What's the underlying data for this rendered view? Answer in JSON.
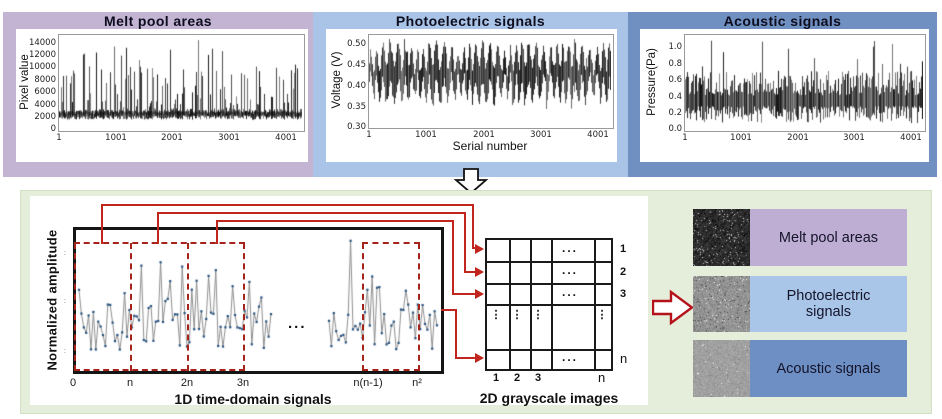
{
  "top_panels": [
    {
      "title": "Melt pool areas",
      "ylabel": "Pixel value",
      "yticks": [
        "14000",
        "12000",
        "10000",
        "8000",
        "6000",
        "4000",
        "2000",
        "0"
      ],
      "xticks": [
        "1",
        "1001",
        "2001",
        "3001",
        "4001"
      ]
    },
    {
      "title": "Photoelectric signals",
      "ylabel": "Voltage (V)",
      "yticks": [
        "0.50",
        "0.45",
        "0.40",
        "0.35",
        "0.30"
      ],
      "xticks": [
        "1",
        "1001",
        "2001",
        "3001",
        "4001"
      ],
      "xlabel": "Serial number"
    },
    {
      "title": "Acoustic signals",
      "ylabel": "Pressure(Pa)",
      "yticks": [
        "1.0",
        "0.8",
        "0.6",
        "0.4",
        "0.2",
        "0.0"
      ],
      "xticks": [
        "1",
        "1001",
        "2001",
        "3001",
        "4001"
      ]
    }
  ],
  "bottom": {
    "plot": {
      "ylabel": "Normalized amplitude",
      "xlabel": "1D time-domain signals",
      "xticks": [
        "0",
        "n",
        "2n",
        "3n",
        "n(n-1)",
        "n²"
      ],
      "ellipsis": "..."
    },
    "grid": {
      "caption": "2D grayscale images",
      "row_labels": [
        "1",
        "2",
        "3",
        "n"
      ],
      "col_labels": [
        "1",
        "2",
        "3",
        "n"
      ],
      "ellipsis_h": "...",
      "ellipsis_v": "⋮"
    },
    "outputs": [
      {
        "label": "Melt pool areas"
      },
      {
        "label": "Photoelectric signals"
      },
      {
        "label": "Acoustic signals"
      }
    ]
  },
  "colors": {
    "lavender": "#c3b4d4",
    "light_blue": "#a9c4e6",
    "steel_blue": "#7090c2",
    "steel_blue_band": "#6d8fc4",
    "green_background": "#e4eeda",
    "red_connector": "#c2251d",
    "dark_red_dashed": "#a6231c"
  },
  "chart_data": [
    {
      "type": "line",
      "title": "Melt pool areas",
      "ylabel": "Pixel value",
      "xticks": [
        1,
        1001,
        2001,
        3001,
        4001
      ],
      "yticks": [
        0,
        2000,
        4000,
        6000,
        8000,
        10000,
        12000,
        14000
      ],
      "xrange": [
        1,
        4200
      ],
      "ylim": [
        0,
        14500
      ],
      "series_description": "dense noisy spike train; baseline ~2000 pixel value; frequent spikes 4000-11000; maximum spike ~14300 near serial 2400; spikes ~12800 near serials 2600-2750"
    },
    {
      "type": "line",
      "title": "Photoelectric signals",
      "xlabel": "Serial number",
      "ylabel": "Voltage (V)",
      "xticks": [
        1,
        1001,
        2001,
        3001,
        4001
      ],
      "yticks": [
        0.3,
        0.35,
        0.4,
        0.45,
        0.5
      ],
      "xrange": [
        1,
        4200
      ],
      "ylim": [
        0.3,
        0.52
      ],
      "series_description": "quasi-periodic oscillation between ~0.38 V and ~0.50 V around mean ~0.43 V, occasional dips to ~0.34 V and peaks to ~0.52 V"
    },
    {
      "type": "line",
      "title": "Acoustic signals",
      "ylabel": "Pressure(Pa)",
      "xticks": [
        1,
        1001,
        2001,
        3001,
        4001
      ],
      "yticks": [
        0.0,
        0.2,
        0.4,
        0.6,
        0.8,
        1.0
      ],
      "xrange": [
        1,
        4200
      ],
      "ylim": [
        0,
        1.15
      ],
      "series_description": "broadband noise centered ~0.33 Pa with spikes up to ~1.1 Pa"
    },
    {
      "type": "line",
      "title": "1D time-domain signals",
      "ylabel": "Normalized amplitude",
      "xticks": [
        "0",
        "n",
        "2n",
        "3n",
        "n(n-1)",
        "n²"
      ],
      "ylim": [
        0,
        1
      ],
      "series_description": "normalized noisy waveform with square point markers; red dashed boxes mark segments [0,n],[n,2n],[2n,3n],[n(n-1),n²]; ellipsis gap between 3n and n(n-1); each segment maps to one row of the 2D grayscale image grid"
    }
  ]
}
